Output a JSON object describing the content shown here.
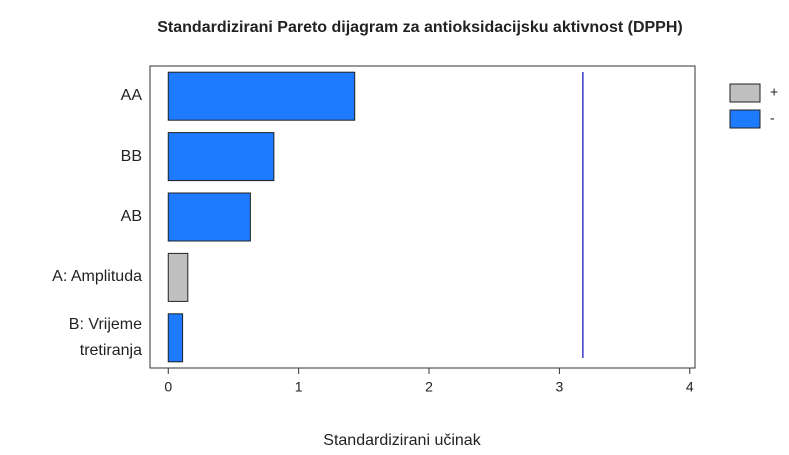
{
  "chart_data": {
    "type": "barh",
    "title": "Standardizirani Pareto dijagram za antioksidacijsku aktivnost (DPPH)",
    "x_label": "Standardizirani učinak",
    "categories": [
      "AA",
      "BB",
      "AB",
      "A: Amplituda",
      "B: Vrijeme tretiranja"
    ],
    "series": [
      {
        "name": "+",
        "color": "#c0c0c0",
        "values": [
          null,
          null,
          null,
          0.15,
          null
        ]
      },
      {
        "name": "-",
        "color": "#1e7bff",
        "values": [
          1.43,
          0.81,
          0.63,
          null,
          0.11
        ]
      }
    ],
    "reference_line": 3.18,
    "reference_color": "#3b3bc8",
    "xlim": [
      -0.14,
      4.04
    ],
    "xticks": [
      0,
      1,
      2,
      3,
      4
    ],
    "legend": "right"
  }
}
